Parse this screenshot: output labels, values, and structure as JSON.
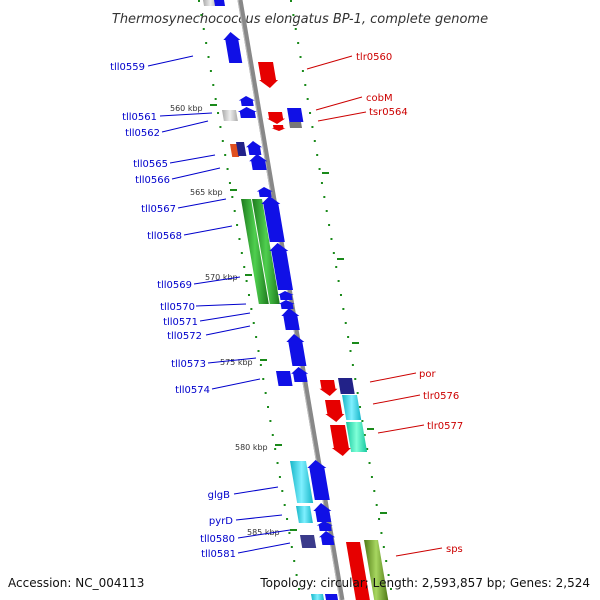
{
  "title": "Thermosynechococcus elongatus BP-1, complete genome",
  "footer": {
    "accession": "Accession: NC_004113",
    "topology": "Topology: circular; Length: 2,593,857 bp; Genes: 2,524"
  },
  "scale_labels": [
    "560 kbp",
    "565 kbp",
    "570 kbp",
    "575 kbp",
    "580 kbp",
    "585 kbp"
  ],
  "labels_left": [
    "tll0559",
    "tll0561",
    "tll0562",
    "tll0565",
    "tll0566",
    "tll0567",
    "tll0568",
    "tll0569",
    "tll0570",
    "tll0571",
    "tll0572",
    "tll0573",
    "tll0574",
    "glgB",
    "pyrD",
    "tll0580",
    "tll0581"
  ],
  "labels_right": [
    "tlr0560",
    "cobM",
    "tsr0564",
    "por",
    "tlr0576",
    "tlr0577",
    "sps"
  ],
  "colors": {
    "reverse_strand": "#1010e6",
    "forward_strand": "#e60000",
    "left_label": "#0000cc",
    "right_label": "#cc0000",
    "backbone": "#888888",
    "tick": "#1a8a1a"
  }
}
